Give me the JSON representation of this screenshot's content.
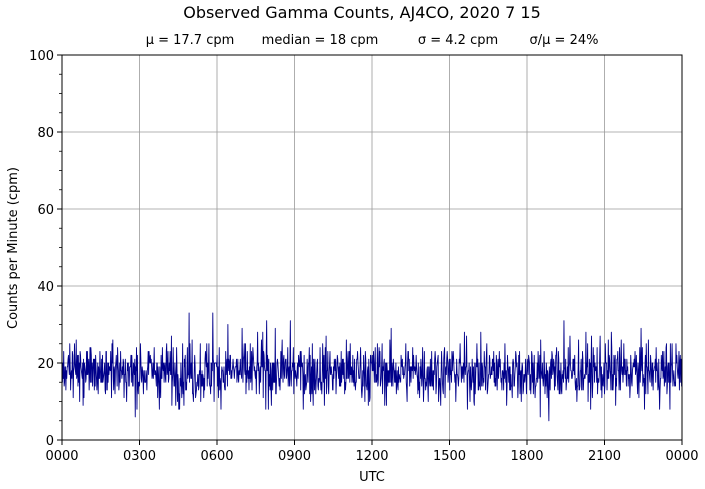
{
  "chart_data": {
    "type": "line",
    "title": "Observed Gamma Counts, AJ4CO, 2020 7 15",
    "subtitle_stats": [
      "μ = 17.7 cpm",
      "median = 18 cpm",
      "σ = 4.2 cpm",
      "σ/μ = 24%"
    ],
    "xlabel": "UTC",
    "ylabel": "Counts per Minute (cpm)",
    "x_tick_labels": [
      "0000",
      "0300",
      "0600",
      "0900",
      "1200",
      "1500",
      "1800",
      "2100",
      "0000"
    ],
    "y_ticks": [
      0,
      20,
      40,
      60,
      80,
      100
    ],
    "ylim": [
      0,
      100
    ],
    "xlim_hours": [
      0,
      24
    ],
    "grid": true,
    "series_color": "#00008b",
    "sampling": "1 value per minute, 1440 points over 24 h",
    "summary": {
      "mean": 17.7,
      "median": 18,
      "std": 4.2,
      "min": 5,
      "max": 33
    },
    "notable_peaks": [
      {
        "x": "04:55",
        "y": 33
      },
      {
        "x": "05:50",
        "y": 33
      },
      {
        "x": "06:25",
        "y": 30
      },
      {
        "x": "07:55",
        "y": 31
      },
      {
        "x": "08:50",
        "y": 31
      },
      {
        "x": "19:25",
        "y": 31
      }
    ],
    "notable_dips": [
      {
        "x": "02:50",
        "y": 6
      },
      {
        "x": "18:50",
        "y": 5
      },
      {
        "x": "18:30",
        "y": 6
      }
    ]
  }
}
